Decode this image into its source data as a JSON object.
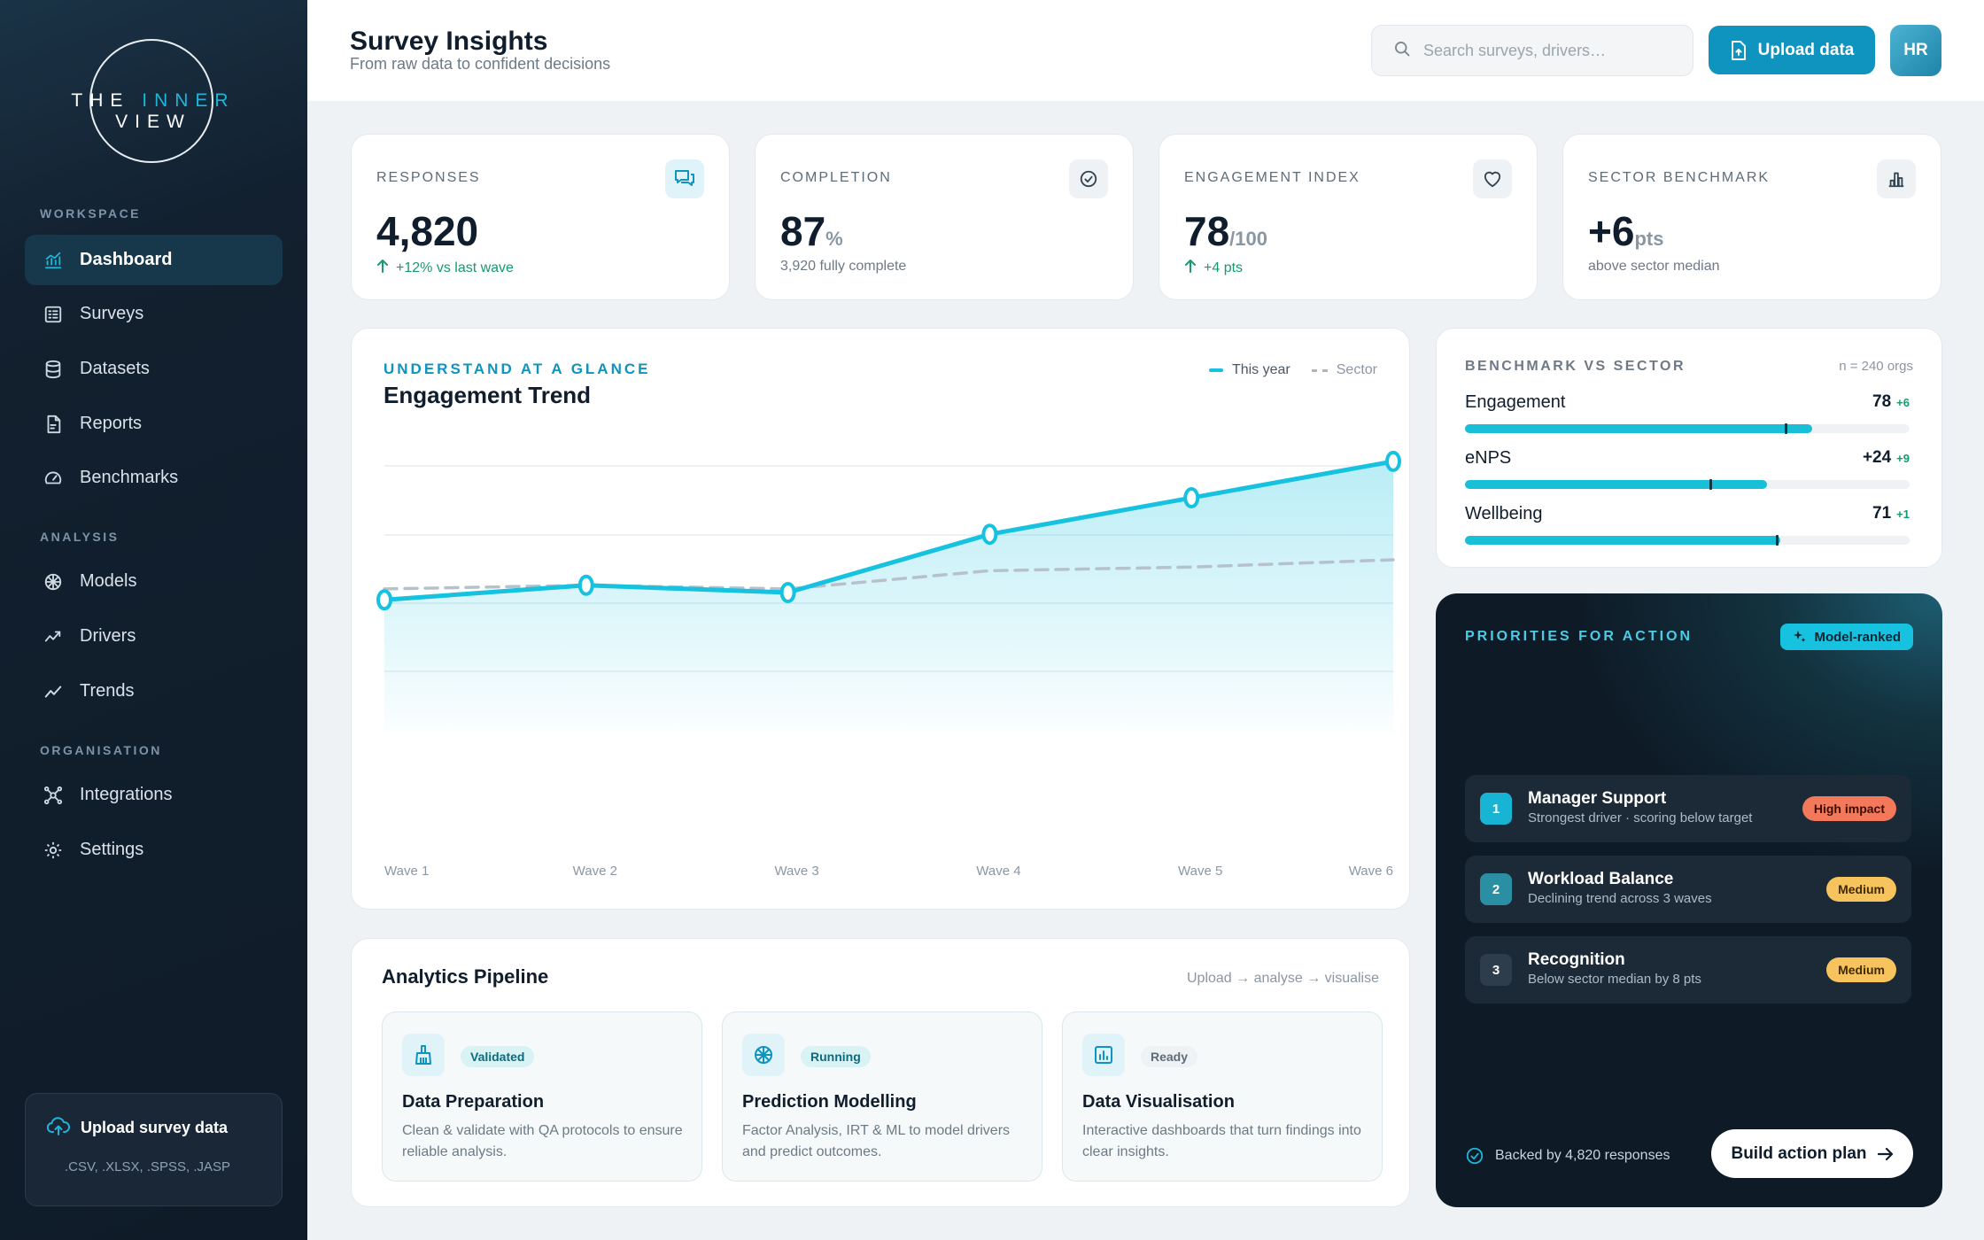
{
  "sidebar": {
    "logo": {
      "part1": "THE ",
      "accent": "INNER",
      "part2": " VIEW"
    },
    "sections": {
      "workspace": "WORKSPACE",
      "analysis": "ANALYSIS",
      "organisation": "ORGANISATION"
    },
    "items": [
      {
        "label": "Dashboard",
        "icon": "chart-line-icon",
        "active": true
      },
      {
        "label": "Surveys",
        "icon": "survey-icon"
      },
      {
        "label": "Datasets",
        "icon": "database-icon"
      },
      {
        "label": "Reports",
        "icon": "report-icon"
      },
      {
        "label": "Benchmarks",
        "icon": "gauge-icon"
      },
      {
        "label": "Models",
        "icon": "brain-icon"
      },
      {
        "label": "Drivers",
        "icon": "trend-up-icon"
      },
      {
        "label": "Trends",
        "icon": "trend-line-icon"
      },
      {
        "label": "Integrations",
        "icon": "network-icon"
      },
      {
        "label": "Settings",
        "icon": "gear-icon"
      }
    ],
    "upload": {
      "title": "Upload survey data",
      "formats": ".CSV, .XLSX, .SPSS, .JASP"
    }
  },
  "header": {
    "title": "Survey Insights",
    "subtitle": "From raw data to confident decisions",
    "search_placeholder": "Search surveys, drivers…",
    "upload_label": "Upload data",
    "avatar": "HR"
  },
  "kpis": [
    {
      "label": "RESPONSES",
      "value": "4,820",
      "unit": "",
      "foot": "+12% vs last wave",
      "icon": "chat-icon"
    },
    {
      "label": "COMPLETION",
      "value": "87",
      "unit": "%",
      "foot": "3,920 fully complete",
      "icon": "check-circle-icon"
    },
    {
      "label": "ENGAGEMENT INDEX",
      "value": "78",
      "unit": "/100",
      "foot": "+4 pts",
      "icon": "heart-icon"
    },
    {
      "label": "SECTOR BENCHMARK",
      "value": "+6",
      "unit": "pts",
      "foot": "above sector median",
      "icon": "bar-chart-icon"
    }
  ],
  "trend": {
    "eyebrow": "UNDERSTAND AT A GLANCE",
    "title": "Engagement Trend",
    "legend_this": "This year",
    "legend_sector": "Sector"
  },
  "chart_data": {
    "type": "line",
    "x": [
      "Wave 1",
      "Wave 2",
      "Wave 3",
      "Wave 4",
      "Wave 5",
      "Wave 6"
    ],
    "series": [
      {
        "name": "This year",
        "values": [
          62,
          64,
          63,
          71,
          76,
          81
        ],
        "color": "#16c2e0"
      },
      {
        "name": "Sector",
        "values": [
          63.5,
          64,
          63.5,
          66,
          66.5,
          67.5
        ],
        "color": "#b6c2cb",
        "dashed": true
      }
    ],
    "ylim": [
      50,
      85
    ],
    "grid": true,
    "area_fill": true
  },
  "benchmark": {
    "eyebrow": "BENCHMARK VS SECTOR",
    "n": "n = 240 orgs",
    "rows": [
      {
        "name": "Engagement",
        "score": "78",
        "delta": "+6",
        "fill": 0.78,
        "sector": 0.72
      },
      {
        "name": "eNPS",
        "score": "+24",
        "delta": "+9",
        "fill": 0.68,
        "sector": 0.55
      },
      {
        "name": "Wellbeing",
        "score": "71",
        "delta": "+1",
        "fill": 0.71,
        "sector": 0.7
      }
    ]
  },
  "priorities": {
    "eyebrow": "PRIORITIES FOR ACTION",
    "badge": "Model-ranked",
    "items": [
      {
        "num": "1",
        "title": "Manager Support",
        "sub": "Strongest driver · scoring below target",
        "tag": "High impact"
      },
      {
        "num": "2",
        "title": "Workload Balance",
        "sub": "Declining trend across 3 waves",
        "tag": "Medium"
      },
      {
        "num": "3",
        "title": "Recognition",
        "sub": "Below sector median by 8 pts",
        "tag": "Medium"
      }
    ],
    "backed": "Backed by 4,820 responses",
    "action": "Build action plan"
  },
  "pipeline": {
    "title": "Analytics Pipeline",
    "flow": "Upload → analyse → visualise",
    "stages": [
      {
        "status": "Validated",
        "name": "Data Preparation",
        "desc": "Clean & validate with QA protocols to ensure reliable analysis.",
        "icon": "broom-icon"
      },
      {
        "status": "Running",
        "name": "Prediction Modelling",
        "desc": "Factor Analysis, IRT & ML to model drivers and predict outcomes.",
        "icon": "brain-icon"
      },
      {
        "status": "Ready",
        "name": "Data Visualisation",
        "desc": "Interactive dashboards that turn findings into clear insights.",
        "icon": "chart-icon"
      }
    ]
  }
}
